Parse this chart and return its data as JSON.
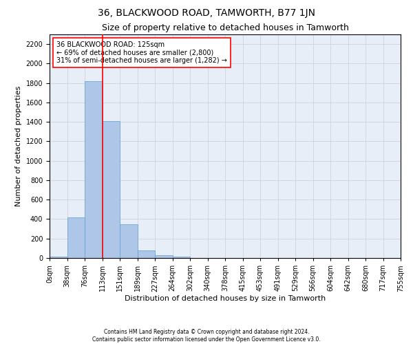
{
  "title": "36, BLACKWOOD ROAD, TAMWORTH, B77 1JN",
  "subtitle": "Size of property relative to detached houses in Tamworth",
  "xlabel": "Distribution of detached houses by size in Tamworth",
  "ylabel": "Number of detached properties",
  "bin_labels": [
    "0sqm",
    "38sqm",
    "76sqm",
    "113sqm",
    "151sqm",
    "189sqm",
    "227sqm",
    "264sqm",
    "302sqm",
    "340sqm",
    "378sqm",
    "415sqm",
    "453sqm",
    "491sqm",
    "529sqm",
    "566sqm",
    "604sqm",
    "642sqm",
    "680sqm",
    "717sqm",
    "755sqm"
  ],
  "bar_values": [
    15,
    420,
    1820,
    1410,
    350,
    80,
    30,
    15,
    0,
    0,
    0,
    0,
    0,
    0,
    0,
    0,
    0,
    0,
    0,
    0
  ],
  "bar_color": "#aec6e8",
  "bar_edge_color": "#5a9fd4",
  "property_line_color": "red",
  "annotation_text": "36 BLACKWOOD ROAD: 125sqm\n← 69% of detached houses are smaller (2,800)\n31% of semi-detached houses are larger (1,282) →",
  "annotation_box_color": "white",
  "annotation_box_edge_color": "red",
  "ylim": [
    0,
    2300
  ],
  "yticks": [
    0,
    200,
    400,
    600,
    800,
    1000,
    1200,
    1400,
    1600,
    1800,
    2000,
    2200
  ],
  "grid_color": "#cccccc",
  "bg_color": "#e8eef7",
  "footer_line1": "Contains HM Land Registry data © Crown copyright and database right 2024.",
  "footer_line2": "Contains public sector information licensed under the Open Government Licence v3.0.",
  "title_fontsize": 10,
  "subtitle_fontsize": 9,
  "axis_label_fontsize": 8,
  "tick_fontsize": 7,
  "annotation_fontsize": 7,
  "footer_fontsize": 5.5
}
